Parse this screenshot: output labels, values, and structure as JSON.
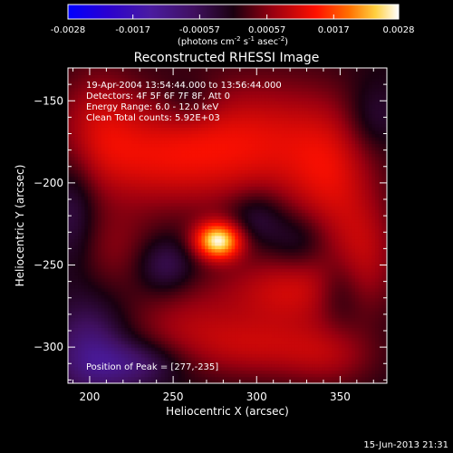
{
  "chart_data": {
    "type": "heatmap",
    "title": "Reconstructed RHESSI Image",
    "xlabel": "Heliocentric X (arcsec)",
    "ylabel": "Heliocentric Y (arcsec)",
    "xlim": [
      187,
      378
    ],
    "ylim": [
      -322,
      -130
    ],
    "x_ticks": [
      200,
      250,
      300,
      350
    ],
    "y_ticks": [
      -150,
      -200,
      -250,
      -300
    ],
    "colorbar": {
      "ticks": [
        -0.0028,
        -0.0017,
        -0.00057,
        0.00057,
        0.0017,
        0.0028
      ],
      "tick_labels": [
        "-0.0028",
        "-0.0017",
        "-0.00057",
        "0.00057",
        "0.0017",
        "0.0028"
      ],
      "unit_label": "(photons cm",
      "unit_exp1": "-2",
      "unit_mid": " s",
      "unit_exp2": "-1",
      "unit_mid2": " asec",
      "unit_exp3": "-2",
      "unit_end": ")",
      "range": [
        -0.0028,
        0.0028
      ]
    },
    "annotations": {
      "time_range": "19-Apr-2004 13:54:44.000 to 13:56:44.000",
      "detectors": "Detectors: 4F 5F 6F 7F 8F, Att 0",
      "energy": "Energy Range: 6.0 - 12.0 keV",
      "clean": "Clean    Total counts: 5.92E+03",
      "peak": "Position of Peak = [277,-235]"
    },
    "peak": {
      "x": 277,
      "y": -235,
      "value": 0.0028
    },
    "components": [
      {
        "x": 277,
        "y": -235,
        "sx": 10,
        "sy": 8,
        "amp": 0.0026
      },
      {
        "x": 300,
        "y": -175,
        "sx": 40,
        "sy": 28,
        "amp": 0.0011
      },
      {
        "x": 235,
        "y": -185,
        "sx": 35,
        "sy": 22,
        "amp": 0.0009
      },
      {
        "x": 205,
        "y": -160,
        "sx": 18,
        "sy": 25,
        "amp": 0.0007
      },
      {
        "x": 345,
        "y": -200,
        "sx": 18,
        "sy": 30,
        "amp": 0.0008
      },
      {
        "x": 365,
        "y": -240,
        "sx": 14,
        "sy": 22,
        "amp": 0.0007
      },
      {
        "x": 320,
        "y": -265,
        "sx": 30,
        "sy": 16,
        "amp": 0.001
      },
      {
        "x": 300,
        "y": -300,
        "sx": 30,
        "sy": 14,
        "amp": 0.0008
      },
      {
        "x": 255,
        "y": -285,
        "sx": 25,
        "sy": 18,
        "amp": 0.0006
      },
      {
        "x": 345,
        "y": -305,
        "sx": 20,
        "sy": 14,
        "amp": 0.0006
      },
      {
        "x": 215,
        "y": -240,
        "sx": 18,
        "sy": 18,
        "amp": 0.0005
      },
      {
        "x": 225,
        "y": -310,
        "sx": 20,
        "sy": 10,
        "amp": -0.0009
      },
      {
        "x": 200,
        "y": -300,
        "sx": 15,
        "sy": 20,
        "amp": -0.0009
      },
      {
        "x": 245,
        "y": -250,
        "sx": 12,
        "sy": 12,
        "amp": -0.0007
      },
      {
        "x": 300,
        "y": -220,
        "sx": 12,
        "sy": 12,
        "amp": -0.0006
      },
      {
        "x": 325,
        "y": -235,
        "sx": 12,
        "sy": 12,
        "amp": -0.0005
      },
      {
        "x": 350,
        "y": -265,
        "sx": 10,
        "sy": 15,
        "amp": -0.0006
      },
      {
        "x": 190,
        "y": -215,
        "sx": 10,
        "sy": 25,
        "amp": -0.0006
      },
      {
        "x": 370,
        "y": -160,
        "sx": 12,
        "sy": 15,
        "amp": -0.0005
      },
      {
        "x": 260,
        "y": -150,
        "sx": 12,
        "sy": 10,
        "amp": -0.0004
      }
    ]
  },
  "footer": {
    "timestamp": "15-Jun-2013 21:31"
  }
}
